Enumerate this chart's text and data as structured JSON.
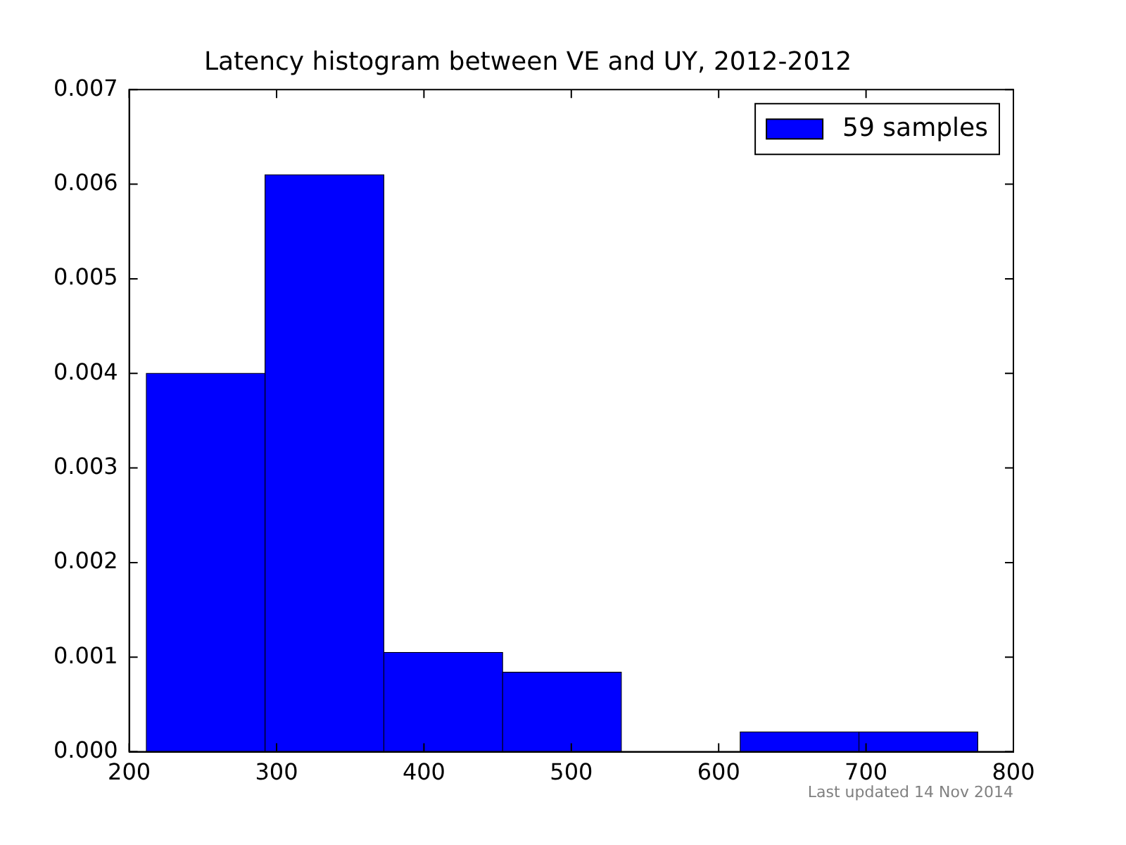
{
  "chart_data": {
    "type": "histogram",
    "title": "Latency histogram between VE and UY, 2012-2012",
    "bins": [
      211.6,
      292.2,
      372.8,
      453.4,
      534,
      614.6,
      695.2,
      775.8
    ],
    "series": [
      {
        "name": "59 samples",
        "color": "#0000ff",
        "values": [
          0.004,
          0.0061,
          0.00105,
          0.00084,
          0,
          0.00021,
          0.00021
        ]
      }
    ],
    "xlim": [
      200,
      800
    ],
    "xticks": [
      200,
      300,
      400,
      500,
      600,
      700,
      800
    ],
    "ylim": [
      0,
      0.007
    ],
    "yticks": [
      {
        "value": 0,
        "label": "0.000"
      },
      {
        "value": 0.001,
        "label": "0.001"
      },
      {
        "value": 0.002,
        "label": "0.002"
      },
      {
        "value": 0.003,
        "label": "0.003"
      },
      {
        "value": 0.004,
        "label": "0.004"
      },
      {
        "value": 0.005,
        "label": "0.005"
      },
      {
        "value": 0.006,
        "label": "0.006"
      },
      {
        "value": 0.007,
        "label": "0.007"
      }
    ],
    "grid": false,
    "legend": "top right",
    "annotations": [
      "Last updated 14 Nov 2014"
    ]
  }
}
